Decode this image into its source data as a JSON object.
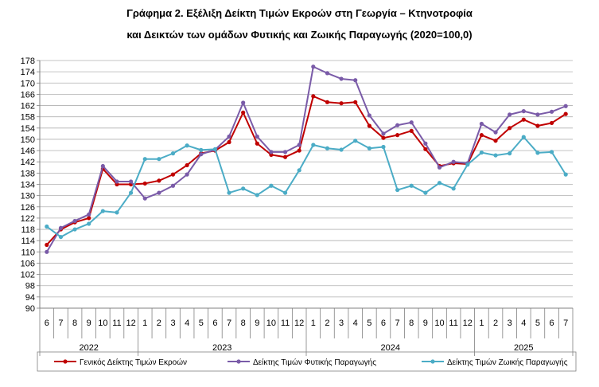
{
  "chart_data": {
    "type": "line",
    "title": "Γράφημα 2. Εξέλιξη Δείκτη Τιμών Εκροών στη Γεωργία – Κτηνοτροφία",
    "subtitle": "και Δεικτών των ομάδων Φυτικής και Ζωικής Παραγωγής (2020=100,0)",
    "ylim": [
      90,
      178
    ],
    "ytick_step": 4,
    "grid": true,
    "legend_position": "bottom",
    "months": [
      "6",
      "7",
      "8",
      "9",
      "10",
      "11",
      "12",
      "1",
      "2",
      "3",
      "4",
      "5",
      "6",
      "7",
      "8",
      "9",
      "10",
      "11",
      "12",
      "1",
      "2",
      "3",
      "4",
      "5",
      "6",
      "7",
      "8",
      "9",
      "10",
      "11",
      "12",
      "1",
      "2",
      "3",
      "4",
      "5",
      "6",
      "7"
    ],
    "years": [
      {
        "label": "2022",
        "count": 7
      },
      {
        "label": "2023",
        "count": 12
      },
      {
        "label": "2024",
        "count": 12
      },
      {
        "label": "2025",
        "count": 7
      }
    ],
    "series": [
      {
        "name": "Γενικός Δείκτης Τιμών Εκροών",
        "color": "#c00000",
        "values": [
          112.5,
          118.0,
          120.5,
          122.0,
          139.5,
          134.0,
          134.0,
          134.3,
          135.3,
          137.5,
          140.8,
          145.0,
          146.0,
          149.0,
          159.5,
          148.5,
          144.5,
          143.7,
          146.0,
          165.3,
          163.2,
          162.8,
          163.2,
          154.8,
          150.5,
          151.5,
          153.0,
          146.5,
          140.5,
          141.5,
          141.2,
          151.5,
          149.5,
          154.0,
          157.0,
          154.8,
          155.8,
          159.0
        ]
      },
      {
        "name": "Δείκτης Τιμών Φυτικής Παραγωγής",
        "color": "#7a5ba8",
        "values": [
          110.0,
          118.5,
          121.0,
          123.3,
          140.5,
          135.0,
          135.0,
          129.0,
          131.0,
          133.5,
          137.5,
          144.7,
          146.3,
          151.0,
          163.0,
          151.0,
          145.5,
          145.5,
          148.0,
          175.8,
          173.5,
          171.5,
          171.0,
          158.5,
          152.0,
          155.0,
          156.0,
          148.5,
          140.0,
          142.0,
          141.5,
          155.5,
          152.5,
          158.8,
          160.0,
          158.8,
          159.8,
          161.8
        ]
      },
      {
        "name": "Δείκτης Τιμών Ζωικής Παραγωγής",
        "color": "#4bacc6",
        "values": [
          119.0,
          115.3,
          118.0,
          120.0,
          124.5,
          124.0,
          131.0,
          143.0,
          143.0,
          145.0,
          147.8,
          146.2,
          146.5,
          131.0,
          132.5,
          130.2,
          133.5,
          131.0,
          139.0,
          148.0,
          146.8,
          146.3,
          149.5,
          146.8,
          147.3,
          132.0,
          133.5,
          131.0,
          134.5,
          132.5,
          141.0,
          145.3,
          144.3,
          145.0,
          150.8,
          145.2,
          145.5,
          137.5
        ]
      }
    ]
  }
}
